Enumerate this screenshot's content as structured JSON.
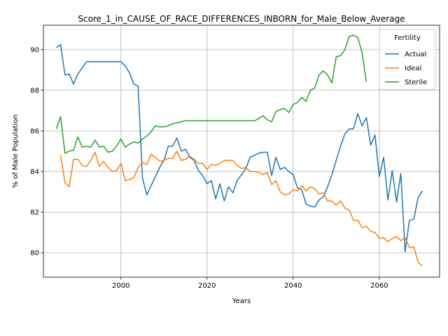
{
  "chart_data": {
    "type": "line",
    "title": "Score_1_in_CAUSE_OF_RACE_DIFFERENCES_INBORN_for_Male_Below_Average",
    "xlabel": "Years",
    "ylabel": "% of Male Population",
    "xlim": [
      1982,
      2074
    ],
    "ylim": [
      78.8,
      91.2
    ],
    "xticks": [
      2000,
      2020,
      2040,
      2060
    ],
    "yticks": [
      80,
      82,
      84,
      86,
      88,
      90
    ],
    "grid": true,
    "legend": {
      "title": "Fertility",
      "placement": "top-right"
    },
    "series": [
      {
        "name": "Actual",
        "color": "#1f77b4",
        "x": [
          1985,
          1986,
          1987,
          1988,
          1989,
          1990,
          1991,
          1992,
          1993,
          1994,
          1995,
          1996,
          1997,
          1998,
          1999,
          2000,
          2001,
          2002,
          2003,
          2004,
          2005,
          2006,
          2007,
          2008,
          2009,
          2010,
          2011,
          2012,
          2013,
          2014,
          2015,
          2016,
          2017,
          2018,
          2019,
          2020,
          2021,
          2022,
          2023,
          2024,
          2025,
          2026,
          2027,
          2028,
          2029,
          2030,
          2031,
          2032,
          2033,
          2034,
          2035,
          2036,
          2037,
          2038,
          2039,
          2040,
          2041,
          2042,
          2043,
          2044,
          2045,
          2046,
          2047,
          2048,
          2049,
          2050,
          2051,
          2052,
          2053,
          2054,
          2055,
          2056,
          2057,
          2058,
          2059,
          2060,
          2061,
          2062,
          2063,
          2064,
          2065,
          2066,
          2067,
          2068,
          2069,
          2070
        ],
        "y": [
          90.1,
          90.25,
          88.75,
          88.8,
          88.3,
          88.8,
          89.1,
          89.4,
          89.4,
          89.4,
          89.4,
          89.4,
          89.4,
          89.4,
          89.4,
          89.4,
          89.2,
          88.85,
          88.3,
          88.2,
          83.7,
          82.85,
          83.3,
          83.75,
          84.2,
          84.55,
          85.25,
          85.25,
          85.65,
          85.0,
          85.1,
          84.7,
          84.55,
          84.05,
          83.8,
          83.4,
          83.55,
          82.65,
          83.4,
          82.55,
          83.25,
          82.95,
          83.55,
          83.85,
          84.15,
          84.7,
          84.8,
          84.9,
          84.95,
          84.95,
          83.8,
          84.7,
          84.1,
          84.2,
          84.0,
          83.85,
          83.2,
          83.1,
          82.4,
          82.3,
          82.25,
          82.6,
          82.75,
          83.25,
          83.85,
          84.55,
          85.25,
          85.85,
          86.1,
          86.1,
          86.85,
          86.25,
          86.65,
          85.3,
          85.8,
          83.75,
          84.7,
          82.6,
          84.05,
          82.5,
          83.9,
          80.05,
          81.6,
          81.65,
          82.7,
          83.05
        ]
      },
      {
        "name": "Ideal",
        "color": "#ff7f0e",
        "x": [
          1986,
          1987,
          1988,
          1989,
          1990,
          1991,
          1992,
          1993,
          1994,
          1995,
          1996,
          1997,
          1998,
          1999,
          2000,
          2001,
          2002,
          2003,
          2004,
          2005,
          2006,
          2007,
          2008,
          2009,
          2010,
          2011,
          2012,
          2013,
          2014,
          2015,
          2016,
          2017,
          2018,
          2019,
          2020,
          2021,
          2022,
          2023,
          2024,
          2025,
          2026,
          2027,
          2028,
          2029,
          2030,
          2031,
          2032,
          2033,
          2034,
          2035,
          2036,
          2037,
          2038,
          2039,
          2040,
          2041,
          2042,
          2043,
          2044,
          2045,
          2046,
          2047,
          2048,
          2049,
          2050,
          2051,
          2052,
          2053,
          2054,
          2055,
          2056,
          2057,
          2058,
          2059,
          2060,
          2061,
          2062,
          2063,
          2064,
          2065,
          2066,
          2067,
          2068,
          2069,
          2070
        ],
        "y": [
          84.8,
          83.45,
          83.25,
          84.6,
          84.6,
          84.3,
          84.25,
          84.55,
          84.95,
          84.25,
          84.5,
          84.2,
          84.0,
          84.05,
          84.4,
          83.55,
          83.6,
          83.7,
          84.2,
          84.45,
          84.35,
          84.85,
          84.7,
          84.5,
          84.55,
          84.65,
          84.65,
          85.0,
          84.55,
          84.6,
          84.75,
          84.6,
          84.4,
          84.4,
          84.1,
          84.35,
          84.3,
          84.4,
          84.55,
          84.55,
          84.55,
          84.3,
          84.15,
          84.2,
          84.0,
          84.0,
          83.95,
          83.85,
          83.95,
          83.35,
          83.55,
          83.0,
          82.85,
          82.9,
          83.1,
          83.05,
          83.3,
          83.05,
          83.25,
          83.15,
          82.9,
          82.95,
          82.55,
          82.55,
          82.35,
          82.55,
          82.2,
          82.1,
          81.6,
          81.6,
          81.25,
          81.3,
          81.05,
          81.0,
          80.7,
          80.75,
          80.55,
          80.7,
          80.8,
          80.6,
          80.75,
          80.25,
          80.3,
          79.55,
          79.35
        ]
      },
      {
        "name": "Sterile",
        "color": "#2ca02c",
        "x": [
          1985,
          1986,
          1987,
          1988,
          1989,
          1990,
          1991,
          1992,
          1993,
          1994,
          1995,
          1996,
          1997,
          1998,
          1999,
          2000,
          2001,
          2002,
          2003,
          2004,
          2005,
          2006,
          2007,
          2008,
          2009,
          2010,
          2011,
          2012,
          2013,
          2014,
          2015,
          2016,
          2017,
          2018,
          2019,
          2020,
          2021,
          2022,
          2023,
          2024,
          2025,
          2026,
          2027,
          2028,
          2029,
          2030,
          2031,
          2032,
          2033,
          2034,
          2035,
          2036,
          2037,
          2038,
          2039,
          2040,
          2041,
          2042,
          2043,
          2044,
          2045,
          2046,
          2047,
          2048,
          2049,
          2050,
          2051,
          2052,
          2053,
          2054,
          2055,
          2056,
          2057
        ],
        "y": [
          86.1,
          86.7,
          84.9,
          85.0,
          85.05,
          85.7,
          85.2,
          85.25,
          85.2,
          85.55,
          85.2,
          85.25,
          84.95,
          85.0,
          85.25,
          85.6,
          85.2,
          85.35,
          85.45,
          85.4,
          85.6,
          85.75,
          85.95,
          86.25,
          86.2,
          86.2,
          86.25,
          86.35,
          86.4,
          86.45,
          86.5,
          86.5,
          86.5,
          86.5,
          86.5,
          86.5,
          86.5,
          86.5,
          86.5,
          86.5,
          86.5,
          86.5,
          86.5,
          86.5,
          86.5,
          86.5,
          86.5,
          86.6,
          86.75,
          86.55,
          86.45,
          86.95,
          87.05,
          87.1,
          86.9,
          87.3,
          87.4,
          87.65,
          87.45,
          88.0,
          88.1,
          88.75,
          88.95,
          88.75,
          88.35,
          89.65,
          89.7,
          90.0,
          90.65,
          90.7,
          90.6,
          89.85,
          88.4
        ]
      }
    ]
  }
}
